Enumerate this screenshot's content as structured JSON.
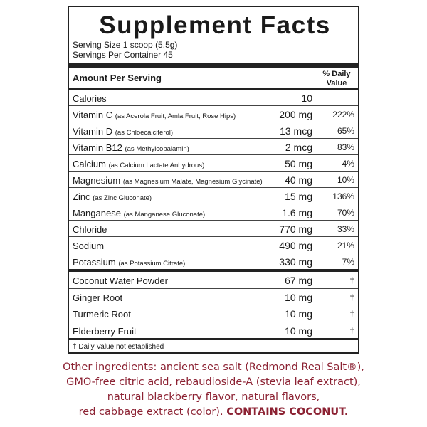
{
  "header": {
    "title": "Supplement Facts",
    "serving_size": "Serving Size 1 scoop (5.5g)",
    "servings": "Servings Per Container 45",
    "amount_label": "Amount Per Serving",
    "dv_label": "% Daily Value"
  },
  "nutrients": [
    {
      "name": "Calories",
      "amount": "10"
    },
    {
      "name": "Vitamin C",
      "source": "(as Acerola Fruit, Amla Fruit, Rose Hips)",
      "amount": "200 mg",
      "dv": "222%"
    },
    {
      "name": "Vitamin D",
      "source": "(as Chloecalciferol)",
      "amount": "13 mcg",
      "dv": "65%"
    },
    {
      "name": "Vitamin B12",
      "source": "(as Methylcobalamin)",
      "amount": "2 mcg",
      "dv": "83%"
    },
    {
      "name": "Calcium",
      "source": "(as Calcium Lactate Anhydrous)",
      "amount": "50 mg",
      "dv": "4%"
    },
    {
      "name": "Magnesium",
      "source": "(as Magnesium Malate, Magnesium Glycinate)",
      "amount": "40 mg",
      "dv": "10%"
    },
    {
      "name": "Zinc",
      "source": "(as Zinc Gluconate)",
      "amount": "15 mg",
      "dv": "136%"
    },
    {
      "name": "Manganese",
      "source": "(as Manganese Gluconate)",
      "amount": "1.6 mg",
      "dv": "70%"
    },
    {
      "name": "Chloride",
      "amount": "770 mg",
      "dv": "33%"
    },
    {
      "name": "Sodium",
      "amount": "490 mg",
      "dv": "21%"
    },
    {
      "name": "Potassium",
      "source": "(as Potassium Citrate)",
      "amount": "330 mg",
      "dv": "7%"
    }
  ],
  "others": [
    {
      "name": "Coconut Water Powder",
      "amount": "67 mg",
      "dv": "†"
    },
    {
      "name": "Ginger Root",
      "amount": "10 mg",
      "dv": "†"
    },
    {
      "name": "Turmeric Root",
      "amount": "10 mg",
      "dv": "†"
    },
    {
      "name": "Elderberry Fruit",
      "amount": "10 mg",
      "dv": "†"
    }
  ],
  "footnote": "† Daily Value not established",
  "other_ingredients": {
    "lines": [
      "Other ingredients: ancient sea salt (Redmond Real Salt®),",
      "GMO-free citric acid, rebaudioside-A (stevia leaf extract),",
      "natural blackberry flavor, natural flavors,",
      "red cabbage extract (color). "
    ],
    "emphasis": "CONTAINS COCONUT."
  }
}
